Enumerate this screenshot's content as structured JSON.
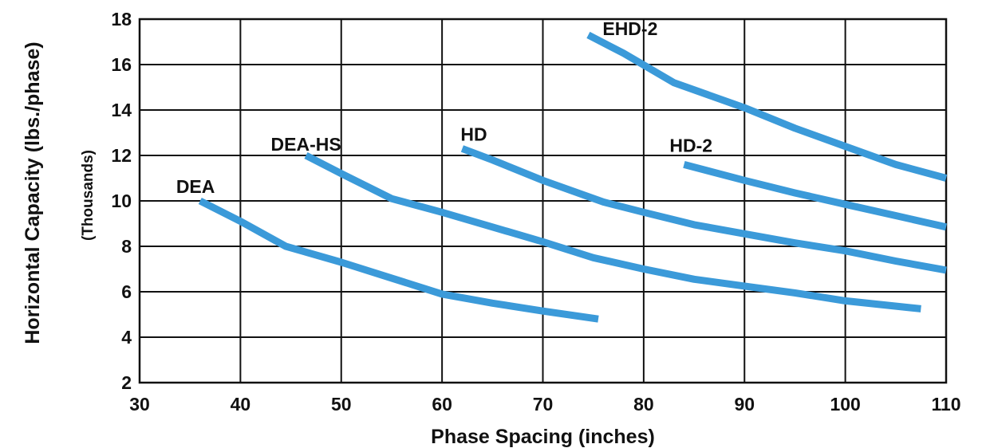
{
  "chart_data": {
    "type": "line",
    "xlabel": "Phase Spacing (inches)",
    "ylabel": "Horizontal Capacity (lbs./phase)",
    "ylabel_sub": "(Thousands)",
    "xlim": [
      30,
      110
    ],
    "ylim": [
      2,
      18
    ],
    "xticks": [
      30,
      40,
      50,
      60,
      70,
      80,
      90,
      100,
      110
    ],
    "yticks": [
      2,
      4,
      6,
      8,
      10,
      12,
      14,
      16,
      18
    ],
    "grid": true,
    "line_color": "#3b9ad9",
    "series": [
      {
        "name": "DEA",
        "x": [
          36,
          40,
          44.5,
          50,
          55,
          60,
          65,
          70,
          75.5
        ],
        "y": [
          10,
          9.1,
          8,
          7.3,
          6.6,
          5.9,
          5.5,
          5.15,
          4.8
        ]
      },
      {
        "name": "DEA-HS",
        "x": [
          46.5,
          50,
          55,
          60,
          65,
          70,
          75,
          80,
          85,
          90,
          95,
          100,
          107.5
        ],
        "y": [
          12,
          11.2,
          10.1,
          9.5,
          8.85,
          8.2,
          7.5,
          7,
          6.55,
          6.25,
          5.95,
          5.6,
          5.25
        ]
      },
      {
        "name": "HD",
        "x": [
          62,
          65,
          70,
          76,
          80,
          85,
          90,
          95,
          100,
          105,
          110
        ],
        "y": [
          12.3,
          11.8,
          10.9,
          9.95,
          9.5,
          8.95,
          8.55,
          8.15,
          7.8,
          7.35,
          6.95
        ]
      },
      {
        "name": "HD-2",
        "x": [
          84,
          90,
          95,
          100,
          105,
          108,
          110
        ],
        "y": [
          11.6,
          10.9,
          10.35,
          9.85,
          9.35,
          9.05,
          8.85
        ]
      },
      {
        "name": "EHD-2",
        "x": [
          74.5,
          78,
          83,
          90,
          95,
          100,
          105,
          110
        ],
        "y": [
          17.3,
          16.5,
          15.2,
          14.1,
          13.2,
          12.4,
          11.6,
          11
        ]
      }
    ]
  }
}
